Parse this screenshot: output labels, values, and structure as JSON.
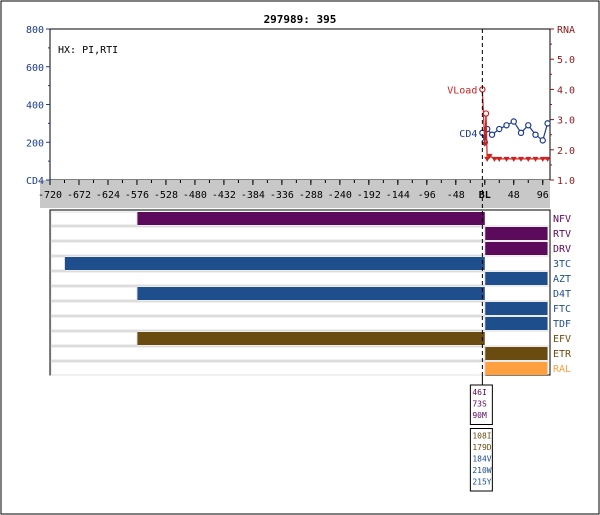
{
  "chart_data": {
    "type": "line",
    "title": "297989: 395",
    "annotation": "HX: PI,RTI",
    "x_axis": {
      "range": [
        -720,
        108
      ],
      "ticks": [
        "-720",
        "-672",
        "-624",
        "-576",
        "-528",
        "-480",
        "-432",
        "-384",
        "-336",
        "-288",
        "-240",
        "-192",
        "-144",
        "-96",
        "-48",
        "BL",
        "48",
        "96"
      ],
      "tick_values": [
        -720,
        -672,
        -624,
        -576,
        -528,
        -480,
        -432,
        -384,
        -336,
        -288,
        -240,
        -192,
        -144,
        -96,
        -48,
        0,
        48,
        96
      ]
    },
    "left_axis": {
      "label": "CD4",
      "range": [
        0,
        800
      ],
      "ticks": [
        "CD4",
        "200",
        "400",
        "600",
        "800"
      ],
      "tick_values": [
        0,
        200,
        400,
        600,
        800
      ],
      "color": "#1a3a8c"
    },
    "right_axis": {
      "label": "RNA",
      "range": [
        1.0,
        6.0
      ],
      "ticks": [
        "1.0",
        "2.0",
        "3.0",
        "4.0",
        "5.0",
        "RNA"
      ],
      "tick_values": [
        1,
        2,
        3,
        4,
        5,
        6
      ],
      "color": "#8b1a1a"
    },
    "series": [
      {
        "name": "CD4",
        "color": "#1a3a8c",
        "axis": "left",
        "x": [
          -4,
          0,
          4,
          12,
          24,
          36,
          48,
          60,
          72,
          84,
          96,
          104
        ],
        "y": [
          250,
          200,
          270,
          240,
          270,
          290,
          310,
          250,
          290,
          240,
          210,
          300
        ]
      },
      {
        "name": "VLoad",
        "color": "#cc2222",
        "axis": "right",
        "x": [
          -4,
          0,
          2,
          4,
          8,
          16,
          24,
          36,
          48,
          60,
          72,
          84,
          96,
          104
        ],
        "y": [
          4.0,
          2.2,
          3.2,
          1.7,
          1.8,
          1.7,
          1.7,
          1.7,
          1.7,
          1.7,
          1.7,
          1.7,
          1.7,
          1.7
        ]
      }
    ],
    "drugs": [
      {
        "name": "NFV",
        "color": "#5c0a5c",
        "start": -576,
        "end": 0
      },
      {
        "name": "RTV",
        "color": "#5c0a5c",
        "start": 0,
        "end": 104
      },
      {
        "name": "DRV",
        "color": "#5c0a5c",
        "start": 0,
        "end": 104
      },
      {
        "name": "3TC",
        "color": "#1f4e8c",
        "start": -696,
        "end": 0
      },
      {
        "name": "AZT",
        "color": "#1f4e8c",
        "start": 0,
        "end": 104
      },
      {
        "name": "D4T",
        "color": "#1f4e8c",
        "start": -576,
        "end": 0
      },
      {
        "name": "FTC",
        "color": "#1f4e8c",
        "start": 0,
        "end": 104
      },
      {
        "name": "TDF",
        "color": "#1f4e8c",
        "start": 0,
        "end": 104
      },
      {
        "name": "EFV",
        "color": "#6b4c10",
        "start": -576,
        "end": 0
      },
      {
        "name": "ETR",
        "color": "#6b4c10",
        "start": 0,
        "end": 104
      },
      {
        "name": "RAL",
        "color": "#ffa040",
        "start": 0,
        "end": 104
      }
    ],
    "mutation_boxes": [
      {
        "items": [
          {
            "text": "46I",
            "color": "#5c0a5c"
          },
          {
            "text": "73S",
            "color": "#5c0a5c"
          },
          {
            "text": "90M",
            "color": "#5c0a5c"
          }
        ]
      },
      {
        "items": [
          {
            "text": "108I",
            "color": "#6b4c10"
          },
          {
            "text": "179D",
            "color": "#6b4c10"
          },
          {
            "text": "184V",
            "color": "#1f4e8c"
          },
          {
            "text": "210W",
            "color": "#1f4e8c"
          },
          {
            "text": "215Y",
            "color": "#1f4e8c"
          }
        ]
      }
    ],
    "colors": {
      "plot_bg": "#ffffff",
      "axis_band": "#c8c8c8",
      "frame": "#000000"
    }
  }
}
